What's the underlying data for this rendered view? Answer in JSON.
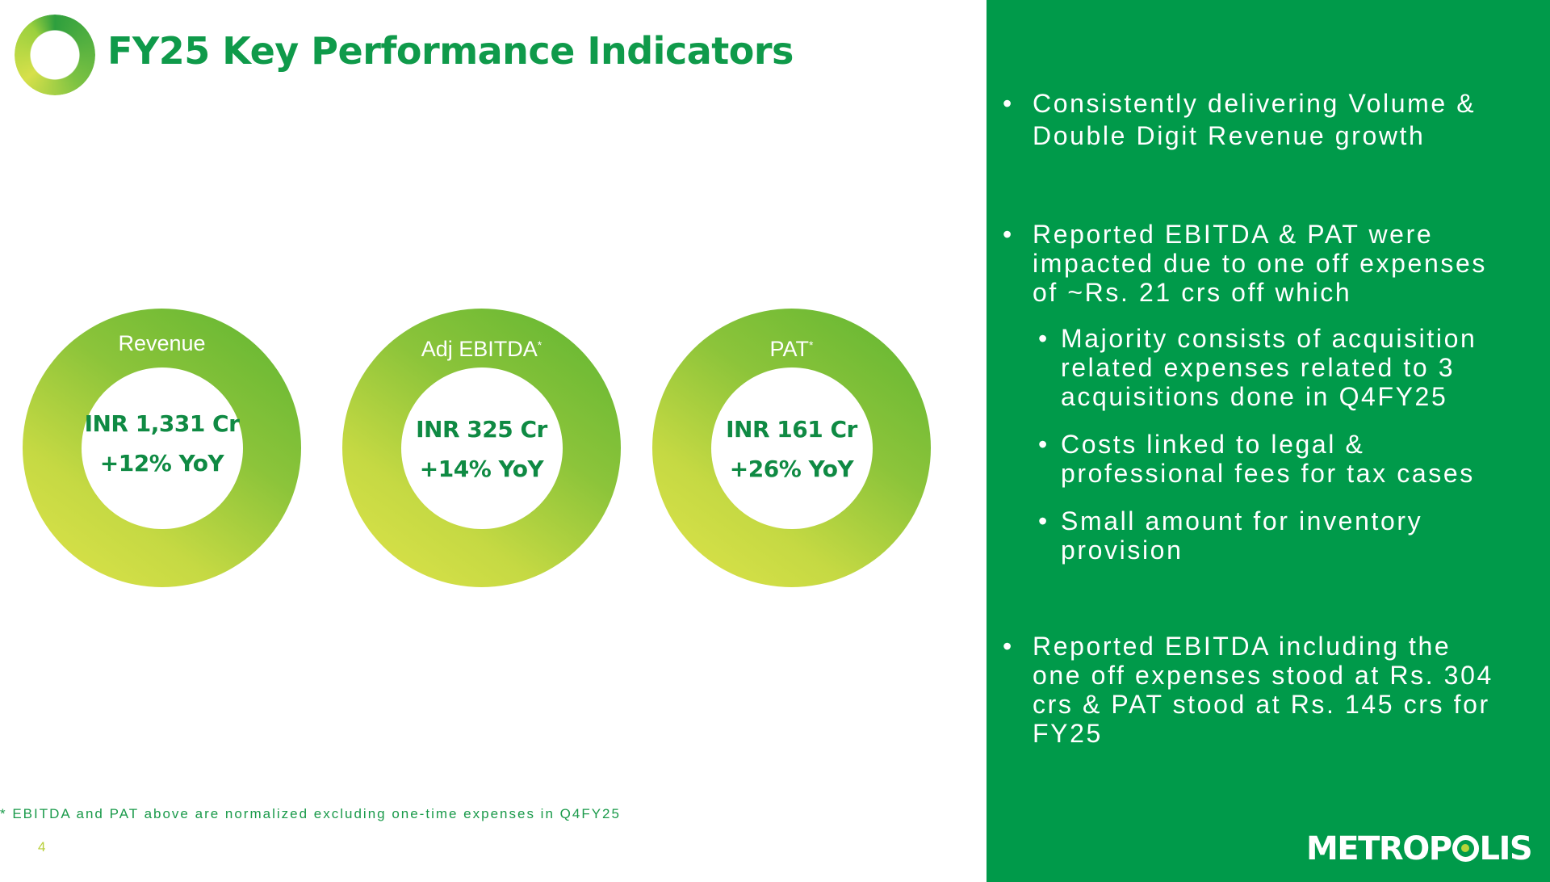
{
  "slide": {
    "title": "FY25 Key Performance Indicators",
    "page_number": "4",
    "footnote": "* EBITDA and PAT above are normalized excluding one-time expenses in Q4FY25"
  },
  "kpis": [
    {
      "label": "Revenue",
      "marker": "",
      "value": "INR 1,331 Cr",
      "growth": "+12% YoY"
    },
    {
      "label": "Adj EBITDA",
      "marker": "*",
      "value": "INR 325 Cr",
      "growth": "+14% YoY"
    },
    {
      "label": "PAT",
      "marker": "*",
      "value": "INR 161 Cr",
      "growth": "+26% YoY"
    }
  ],
  "panel": {
    "bullet_symbol": "•",
    "bullets": [
      {
        "line1": "Consistently delivering Volume &",
        "line2": "Double Digit Revenue growth"
      },
      {
        "line1": "Reported EBITDA & PAT were",
        "line2": "impacted due to one off expenses",
        "line3": "of ~Rs. 21 crs off which"
      },
      {
        "line1": "Reported EBITDA including the",
        "line2": "one off expenses stood at Rs. 304",
        "line3": "crs & PAT stood at Rs. 145 crs for",
        "line4": "FY25"
      }
    ],
    "sub_bullets": [
      {
        "line1": "Majority consists of acquisition",
        "line2": "related expenses related to 3",
        "line3": "acquisitions done in Q4FY25"
      },
      {
        "line1": "Costs linked to legal &",
        "line2": "professional fees for tax cases"
      },
      {
        "line1": "Small amount for inventory",
        "line2": "provision"
      }
    ]
  },
  "brand": {
    "name_part1": "METROP",
    "name_part2": "LIS"
  },
  "colors": {
    "primary_green": "#009a4a",
    "title_green": "#0f9a4a",
    "lime": "#dfe44a",
    "white": "#ffffff"
  }
}
